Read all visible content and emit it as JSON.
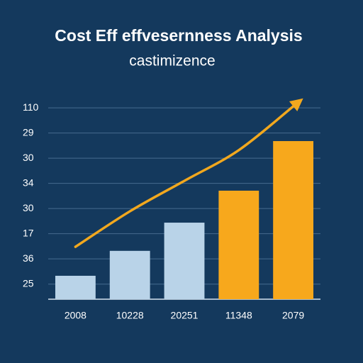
{
  "chart_data": {
    "type": "bar",
    "title": "Cost Eff effvesernness Analysis",
    "subtitle": "castimizence",
    "categories": [
      "2008",
      "10228",
      "20251",
      "11348",
      "2079"
    ],
    "values": [
      0.93,
      1.92,
      3.04,
      4.31,
      6.28
    ],
    "colors": [
      "#b9d3e8",
      "#b9d3e8",
      "#b9d3e8",
      "#f7a81c",
      "#f7a81c"
    ],
    "trend": {
      "color": "#f2a81e",
      "values": [
        2.08,
        3.49,
        4.7,
        5.92,
        7.66
      ]
    },
    "ylim": [
      0,
      7.8
    ],
    "yticks": [
      {
        "value": 0.6,
        "label": "25"
      },
      {
        "value": 1.6,
        "label": "36"
      },
      {
        "value": 2.6,
        "label": "17"
      },
      {
        "value": 3.6,
        "label": "30"
      },
      {
        "value": 4.6,
        "label": "34"
      },
      {
        "value": 5.6,
        "label": "30"
      },
      {
        "value": 6.6,
        "label": "29"
      },
      {
        "value": 7.6,
        "label": "110"
      }
    ],
    "grid": true
  }
}
